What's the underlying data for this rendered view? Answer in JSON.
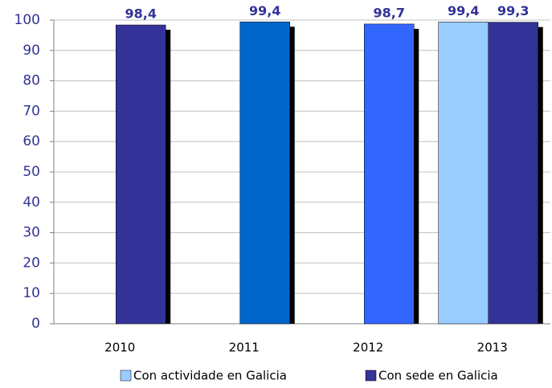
{
  "chart_data": {
    "type": "bar",
    "categories": [
      "2010",
      "2011",
      "2012",
      "2013"
    ],
    "series": [
      {
        "name": "Con actividade en Galicia",
        "color": "#99ccff",
        "values": [
          null,
          null,
          null,
          99.4
        ],
        "value_labels": [
          null,
          null,
          null,
          "99,4"
        ]
      },
      {
        "name": "Con sede en Galicia",
        "color": "#333399",
        "colors": [
          "#333399",
          "#0066cc",
          "#3366ff",
          "#333399"
        ],
        "values": [
          98.4,
          99.4,
          98.7,
          99.3
        ],
        "value_labels": [
          "98,4",
          "99,4",
          "98,7",
          "99,3"
        ]
      }
    ],
    "ylim": [
      0,
      100
    ],
    "yticks": [
      0,
      10,
      20,
      30,
      40,
      50,
      60,
      70,
      80,
      90,
      100
    ],
    "grid": true,
    "legend": "bottom"
  }
}
